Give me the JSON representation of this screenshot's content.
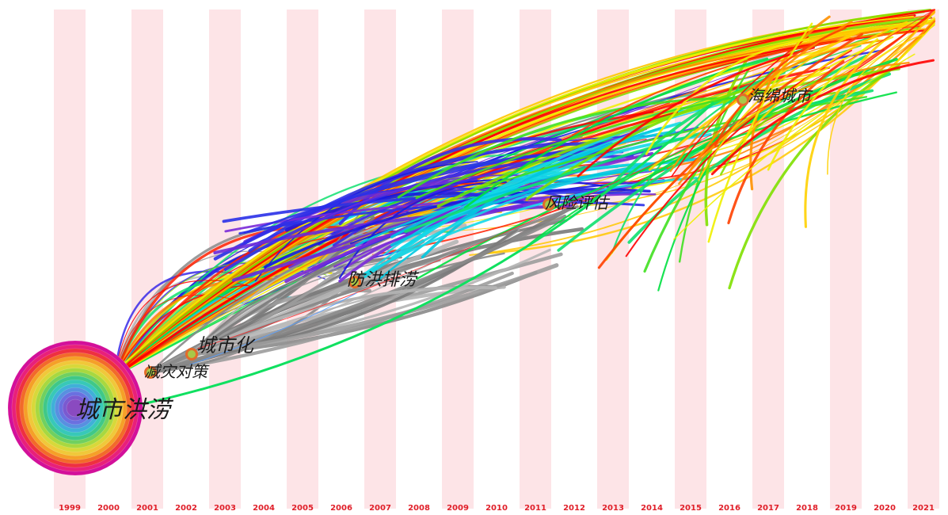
{
  "timeline": {
    "years": [
      "1999",
      "2000",
      "2001",
      "2002",
      "2003",
      "2004",
      "2005",
      "2006",
      "2007",
      "2008",
      "2009",
      "2010",
      "2011",
      "2012",
      "2013",
      "2014",
      "2015",
      "2016",
      "2017",
      "2018",
      "2019",
      "2020",
      "2021"
    ],
    "stripe_color": "#fde4e7",
    "year_label_color": "#e0202a"
  },
  "keywords": [
    {
      "id": "urban-flood",
      "label": "城市洪涝",
      "year": 1999,
      "size": "hub"
    },
    {
      "id": "disaster-reduction",
      "label": "减灾对策",
      "year": 2001,
      "size": "medium"
    },
    {
      "id": "urbanization",
      "label": "城市化",
      "year": 2002,
      "size": "medium"
    },
    {
      "id": "flood-drainage",
      "label": "防洪排涝",
      "year": 2006,
      "size": "medium"
    },
    {
      "id": "risk-assessment",
      "label": "风险评估",
      "year": 2011,
      "size": "medium"
    },
    {
      "id": "sponge-city",
      "label": "海绵城市",
      "year": 2016,
      "size": "medium"
    }
  ],
  "hub_ring_colors": [
    "#d3109a",
    "#e8207a",
    "#ee3040",
    "#f26a2a",
    "#f5a028",
    "#f0c83a",
    "#d8d83a",
    "#a8d840",
    "#70d060",
    "#40c888",
    "#38c8b8",
    "#40b0d8",
    "#5890e0",
    "#6a70e0",
    "#7a5ad0",
    "#8a4ac0"
  ],
  "flow_colors": [
    "#8a8a8a",
    "#9a9a9a",
    "#b8b8b8",
    "#1818e0",
    "#3a2ae8",
    "#7a2ad8",
    "#14d8e8",
    "#00d8d8",
    "#10e070",
    "#00e040",
    "#80e000",
    "#f0f000",
    "#ffc800",
    "#ff8000",
    "#ff2000",
    "#ff0000"
  ]
}
